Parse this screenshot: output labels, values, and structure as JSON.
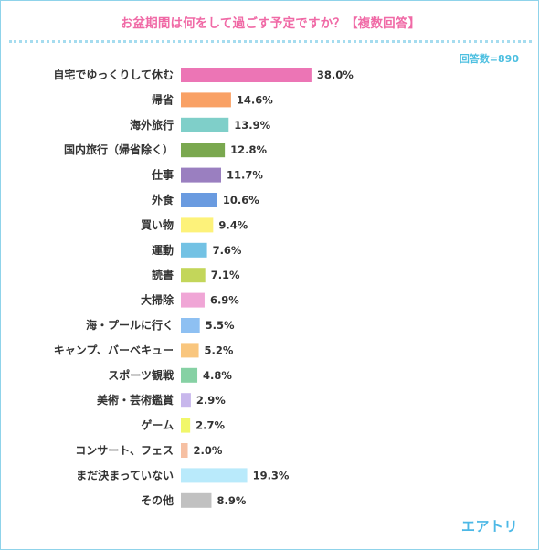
{
  "header": {
    "title": "お盆期間は何をして過ごす予定ですか？【複数回答】",
    "respondents": "回答数=890"
  },
  "brand": {
    "name": "エアトリ"
  },
  "chart_data": {
    "type": "bar",
    "orientation": "horizontal",
    "title": "お盆期間は何をして過ごす予定ですか？【複数回答】",
    "xlim": [
      0,
      100
    ],
    "unit": "%",
    "grid": false,
    "categories": [
      "自宅でゆっくりして休む",
      "帰省",
      "海外旅行",
      "国内旅行（帰省除く）",
      "仕事",
      "外食",
      "買い物",
      "運動",
      "読書",
      "大掃除",
      "海・プールに行く",
      "キャンプ、バーベキュー",
      "スポーツ観戦",
      "美術・芸術鑑賞",
      "ゲーム",
      "コンサート、フェス",
      "まだ決まっていない",
      "その他"
    ],
    "values": [
      38.0,
      14.6,
      13.9,
      12.8,
      11.7,
      10.6,
      9.4,
      7.6,
      7.1,
      6.9,
      5.5,
      5.2,
      4.8,
      2.9,
      2.7,
      2.0,
      19.3,
      8.9
    ],
    "value_labels": [
      "38.0%",
      "14.6%",
      "13.9%",
      "12.8%",
      "11.7%",
      "10.6%",
      "9.4%",
      "7.6%",
      "7.1%",
      "6.9%",
      "5.5%",
      "5.2%",
      "4.8%",
      "2.9%",
      "2.7%",
      "2.0%",
      "19.3%",
      "8.9%"
    ],
    "colors": [
      "#ec75b5",
      "#f9a165",
      "#7fcfc9",
      "#7aa84f",
      "#9a7fc0",
      "#6a9be0",
      "#fdf27a",
      "#73c2e4",
      "#c3d65a",
      "#f0a6d6",
      "#8ec0f2",
      "#f9c67e",
      "#86d1a4",
      "#c8b7ec",
      "#f1f76a",
      "#f6c0a3",
      "#b9eafb",
      "#c1c1c1"
    ]
  }
}
